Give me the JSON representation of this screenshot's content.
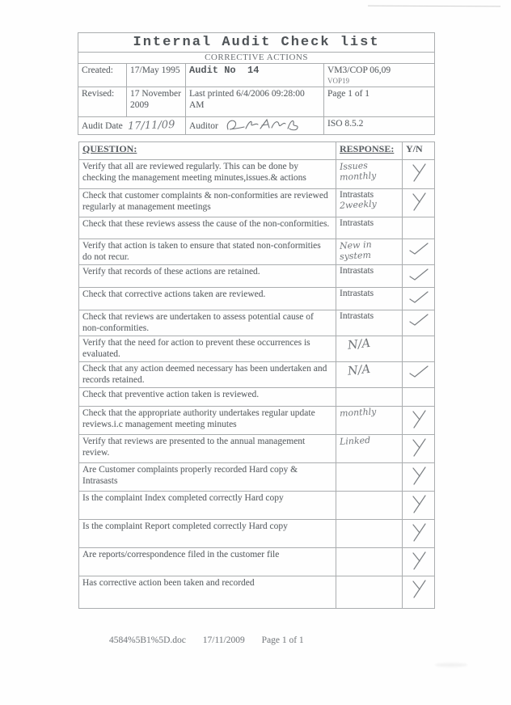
{
  "page": {
    "title": "Internal Audit Check list",
    "subtitle": "CORRECTIVE ACTIONS",
    "meta": {
      "created_label": "Created:",
      "created_value": "17/May 1995",
      "audit_no": "Audit No  14",
      "ref_primary": "VM3/COP 06,09",
      "ref_secondary": "VOP19",
      "revised_label": "Revised:",
      "revised_value": "17 November 2009",
      "last_printed": "Last printed 6/4/2006 09:28:00 AM",
      "page_count": "Page 1 of 1",
      "audit_date_label": "Audit Date",
      "audit_date_handwritten": "17/11/09",
      "auditor_label": "Auditor",
      "auditor_signature": "DCAMB",
      "iso_ref": "ISO 8.5.2"
    },
    "checklist": {
      "headers": {
        "question": "QUESTION:",
        "response": "RESPONSE:",
        "yn": "Y/N"
      },
      "rows": [
        {
          "question": "Verify that all are reviewed regularly. This can be done by checking the management meeting minutes,issues.& actions",
          "response_typed": "",
          "response_hw": [
            "Issues",
            "monthly"
          ],
          "mark": "Y"
        },
        {
          "question": "Check that customer complaints & non-conformities are reviewed regularly at management meetings",
          "response_typed": "Intrastats",
          "response_hw": [
            "2weekly"
          ],
          "mark": "Y"
        },
        {
          "question": "Check that these reviews assess the cause of the non-conformities.",
          "response_typed": "Intrastats",
          "response_hw": [],
          "mark": ""
        },
        {
          "question": "Verify that action is taken to ensure that stated non-conformities do not recur.",
          "response_typed": "",
          "response_hw": [
            "New in",
            "system"
          ],
          "mark": "check"
        },
        {
          "question": "Verify that records of these actions are retained.",
          "response_typed": "Intrastats",
          "response_hw": [],
          "mark": "check"
        },
        {
          "question": "Check that corrective actions taken are reviewed.",
          "response_typed": "Intrastats",
          "response_hw": [],
          "mark": "check"
        },
        {
          "question": "Check that reviews are undertaken to assess potential cause of non-conformities.",
          "response_typed": "Intrastats",
          "response_hw": [],
          "mark": "check"
        },
        {
          "question": "Verify that the need for action to prevent these occurrences is evaluated.",
          "response_typed": "",
          "response_hw": [
            "N/A"
          ],
          "mark": ""
        },
        {
          "question": "Check that any action deemed necessary has been undertaken and records retained.",
          "response_typed": "",
          "response_hw": [
            "N/A"
          ],
          "mark": "check"
        },
        {
          "question": "Check that preventive action taken is reviewed.",
          "response_typed": "",
          "response_hw": [],
          "mark": ""
        },
        {
          "question": "Check that the appropriate authority undertakes regular update reviews.i.c management meeting minutes",
          "response_typed": "",
          "response_hw": [
            "monthly"
          ],
          "mark": "Y"
        },
        {
          "question": "Verify that reviews are presented to the annual management review.",
          "response_typed": "",
          "response_hw": [
            "Linked"
          ],
          "mark": "Y"
        },
        {
          "question": "Are Customer complaints properly recorded Hard copy & Intrasasts",
          "response_typed": "",
          "response_hw": [],
          "mark": "Y"
        },
        {
          "question": "Is the complaint Index completed correctly Hard copy",
          "response_typed": "",
          "response_hw": [],
          "mark": "Y"
        },
        {
          "question": "Is the complaint Report completed correctly Hard copy",
          "response_typed": "",
          "response_hw": [],
          "mark": "Y"
        },
        {
          "question": "Are reports/correspondence filed in the customer file",
          "response_typed": "",
          "response_hw": [],
          "mark": "Y"
        },
        {
          "question": "Has corrective action been taken and recorded",
          "response_typed": "",
          "response_hw": [],
          "mark": "Y"
        }
      ]
    },
    "footer": {
      "filename": "4584%5B1%5D.doc",
      "date": "17/11/2009",
      "page": "Page 1 of 1"
    }
  }
}
